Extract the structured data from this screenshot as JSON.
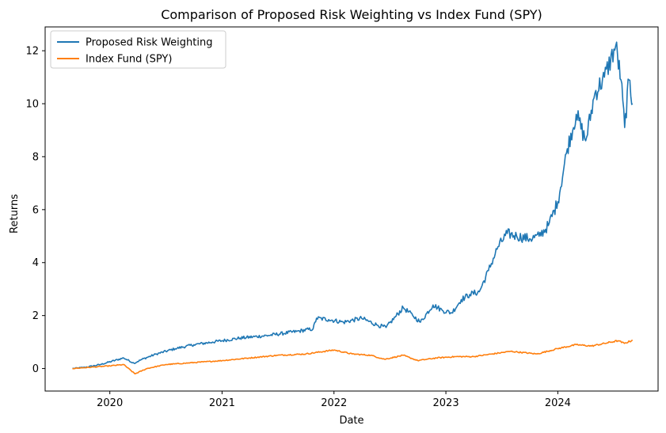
{
  "chart_data": {
    "type": "line",
    "title": "Comparison of Proposed Risk Weighting vs Index Fund (SPY)",
    "xlabel": "Date",
    "ylabel": "Returns",
    "xlim": [
      "2019-06-04",
      "2024-11-23"
    ],
    "ylim": [
      -0.85,
      12.9
    ],
    "x_ticks": [
      "2020",
      "2021",
      "2022",
      "2023",
      "2024"
    ],
    "y_ticks": [
      "0",
      "2",
      "4",
      "6",
      "8",
      "10",
      "12"
    ],
    "grid": false,
    "legend_position": "top-left",
    "series": [
      {
        "name": "Proposed Risk Weighting",
        "color": "#1f77b4",
        "points": [
          [
            "2019-09-01",
            0.0
          ],
          [
            "2019-10-15",
            0.05
          ],
          [
            "2019-12-01",
            0.15
          ],
          [
            "2020-02-15",
            0.4
          ],
          [
            "2020-03-20",
            0.2
          ],
          [
            "2020-04-15",
            0.35
          ],
          [
            "2020-06-01",
            0.55
          ],
          [
            "2020-08-01",
            0.75
          ],
          [
            "2020-10-01",
            0.9
          ],
          [
            "2020-12-01",
            1.0
          ],
          [
            "2021-03-01",
            1.15
          ],
          [
            "2021-06-01",
            1.25
          ],
          [
            "2021-09-01",
            1.4
          ],
          [
            "2021-10-25",
            1.5
          ],
          [
            "2021-11-05",
            1.9
          ],
          [
            "2021-12-15",
            1.85
          ],
          [
            "2022-02-01",
            1.75
          ],
          [
            "2022-04-01",
            1.9
          ],
          [
            "2022-05-20",
            1.65
          ],
          [
            "2022-06-20",
            1.55
          ],
          [
            "2022-07-20",
            1.95
          ],
          [
            "2022-08-15",
            2.3
          ],
          [
            "2022-09-15",
            2.0
          ],
          [
            "2022-10-10",
            1.75
          ],
          [
            "2022-11-20",
            2.4
          ],
          [
            "2022-12-20",
            2.2
          ],
          [
            "2023-01-20",
            2.1
          ],
          [
            "2023-02-20",
            2.6
          ],
          [
            "2023-03-20",
            2.8
          ],
          [
            "2023-04-20",
            2.9
          ],
          [
            "2023-05-20",
            3.7
          ],
          [
            "2023-06-20",
            4.6
          ],
          [
            "2023-07-20",
            5.1
          ],
          [
            "2023-08-20",
            5.0
          ],
          [
            "2023-10-01",
            4.9
          ],
          [
            "2023-11-01",
            5.0
          ],
          [
            "2023-12-01",
            5.4
          ],
          [
            "2024-01-01",
            6.3
          ],
          [
            "2024-02-01",
            8.3
          ],
          [
            "2024-03-01",
            9.6
          ],
          [
            "2024-04-01",
            8.6
          ],
          [
            "2024-05-01",
            10.4
          ],
          [
            "2024-06-01",
            11.0
          ],
          [
            "2024-07-08",
            12.2
          ],
          [
            "2024-07-25",
            10.9
          ],
          [
            "2024-08-06",
            9.1
          ],
          [
            "2024-08-20",
            10.9
          ],
          [
            "2024-09-01",
            10.0
          ]
        ]
      },
      {
        "name": "Index Fund (SPY)",
        "color": "#ff7f0e",
        "points": [
          [
            "2019-09-01",
            0.0
          ],
          [
            "2019-11-01",
            0.05
          ],
          [
            "2020-01-01",
            0.1
          ],
          [
            "2020-02-15",
            0.15
          ],
          [
            "2020-03-23",
            -0.2
          ],
          [
            "2020-05-01",
            0.0
          ],
          [
            "2020-07-01",
            0.15
          ],
          [
            "2020-09-01",
            0.2
          ],
          [
            "2020-11-01",
            0.25
          ],
          [
            "2021-01-01",
            0.3
          ],
          [
            "2021-04-01",
            0.4
          ],
          [
            "2021-07-01",
            0.5
          ],
          [
            "2021-10-01",
            0.55
          ],
          [
            "2022-01-01",
            0.7
          ],
          [
            "2022-03-01",
            0.55
          ],
          [
            "2022-05-01",
            0.5
          ],
          [
            "2022-06-15",
            0.35
          ],
          [
            "2022-08-15",
            0.5
          ],
          [
            "2022-10-01",
            0.3
          ],
          [
            "2022-12-01",
            0.4
          ],
          [
            "2023-02-01",
            0.45
          ],
          [
            "2023-04-01",
            0.45
          ],
          [
            "2023-06-01",
            0.55
          ],
          [
            "2023-08-01",
            0.65
          ],
          [
            "2023-10-25",
            0.55
          ],
          [
            "2023-12-31",
            0.75
          ],
          [
            "2024-03-01",
            0.9
          ],
          [
            "2024-04-20",
            0.85
          ],
          [
            "2024-07-15",
            1.05
          ],
          [
            "2024-08-05",
            0.95
          ],
          [
            "2024-09-01",
            1.07
          ]
        ]
      }
    ]
  }
}
